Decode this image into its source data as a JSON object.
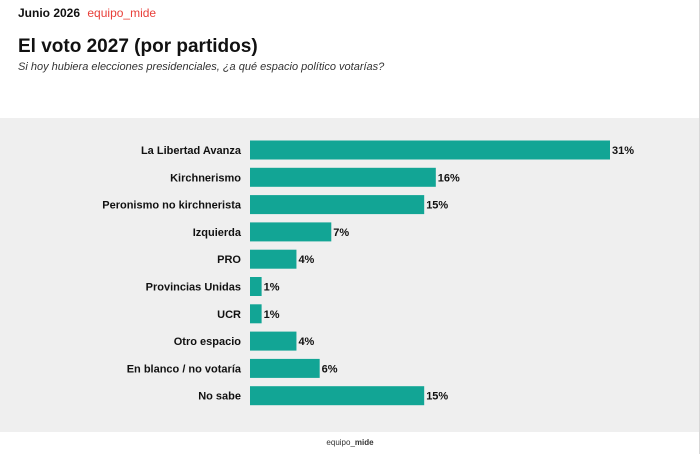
{
  "header": {
    "date": "Junio 2026",
    "brand": "equipo_mide",
    "title": "El voto 2027 (por partidos)",
    "subtitle": "Si hoy hubiera elecciones presidenciales, ¿a qué espacio político votarías?"
  },
  "footer": {
    "prefix": "equipo_",
    "bold": "mide"
  },
  "colors": {
    "bar": "#12a595",
    "panel": "#efefef",
    "brand": "#e8403a"
  },
  "chart_data": {
    "type": "bar",
    "orientation": "horizontal",
    "title": "El voto 2027 (por partidos)",
    "subtitle": "Si hoy hubiera elecciones presidenciales, ¿a qué espacio político votarías?",
    "unit": "%",
    "categories": [
      "La Libertad Avanza",
      "Kirchnerismo",
      "Peronismo no kirchnerista",
      "Izquierda",
      "PRO",
      "Provincias Unidas",
      "UCR",
      "Otro espacio",
      "En blanco / no votaría",
      "No sabe"
    ],
    "values": [
      31,
      16,
      15,
      7,
      4,
      1,
      1,
      4,
      6,
      15
    ],
    "labels": [
      "31%",
      "16%",
      "15%",
      "7%",
      "4%",
      "1%",
      "1%",
      "4%",
      "6%",
      "15%"
    ],
    "xlim": [
      0,
      31
    ],
    "grid": false,
    "legend": "none"
  }
}
